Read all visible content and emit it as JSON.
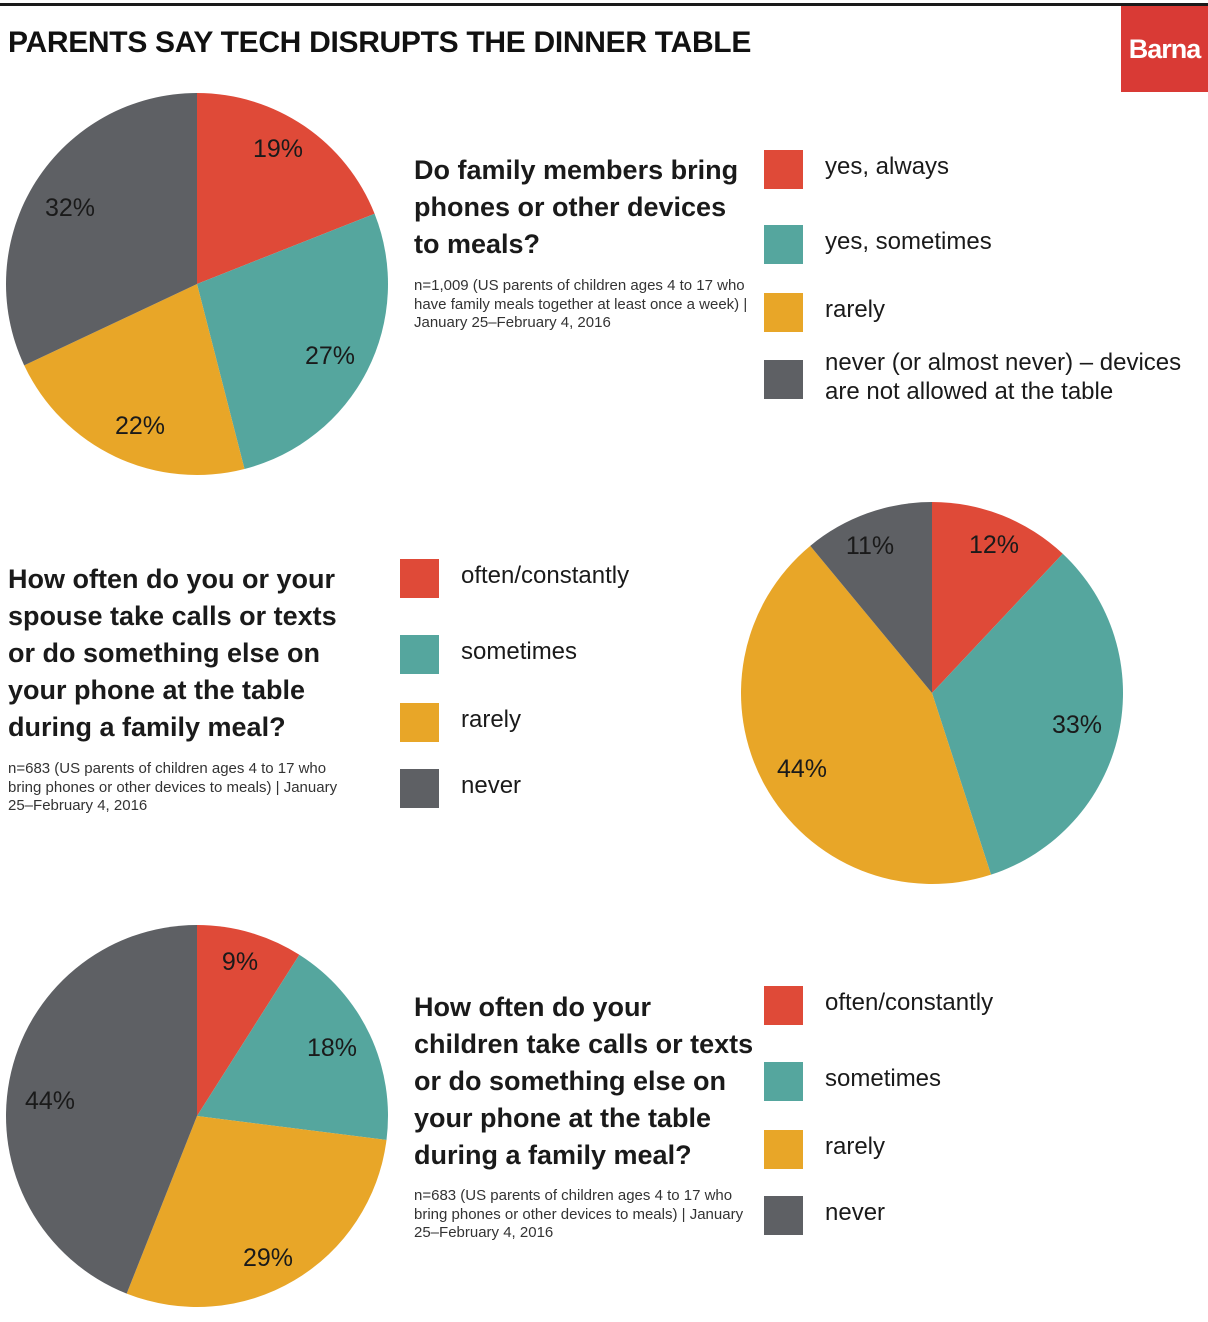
{
  "title": "PARENTS SAY TECH DISRUPTS THE DINNER TABLE",
  "logo": "Barna",
  "colors": {
    "red": "#df4a38",
    "teal": "#55a69e",
    "yellow": "#e8a628",
    "gray": "#5e6064"
  },
  "chart_data": [
    {
      "type": "pie",
      "title": "Do family members bring phones or other devices to meals?",
      "note": "n=1,009 (US parents of children ages 4 to 17 who have family meals together at least once a week) | January 25–February 4, 2016",
      "categories": [
        "yes, always",
        "yes, sometimes",
        "rarely",
        "never (or almost never) – devices are not allowed at the table"
      ],
      "values": [
        19,
        27,
        22,
        32
      ],
      "labels": [
        "19%",
        "27%",
        "22%",
        "32%"
      ]
    },
    {
      "type": "pie",
      "title": "How often do you or your spouse take calls or texts or do something else on your phone at the table during a family meal?",
      "note": "n=683 (US parents of children ages 4 to 17 who bring phones or other devices to meals) | January 25–February 4, 2016",
      "categories": [
        "often/constantly",
        "sometimes",
        "rarely",
        "never"
      ],
      "values": [
        12,
        33,
        44,
        11
      ],
      "labels": [
        "12%",
        "33%",
        "44%",
        "11%"
      ]
    },
    {
      "type": "pie",
      "title": "How often do your children take calls or texts or do something else on your phone at the table during a family meal?",
      "note": "n=683 (US parents of children ages 4 to 17 who bring phones or other devices to meals) | January 25–February 4, 2016",
      "categories": [
        "often/constantly",
        "sometimes",
        "rarely",
        "never"
      ],
      "values": [
        9,
        18,
        29,
        44
      ],
      "labels": [
        "9%",
        "18%",
        "29%",
        "44%"
      ]
    }
  ]
}
